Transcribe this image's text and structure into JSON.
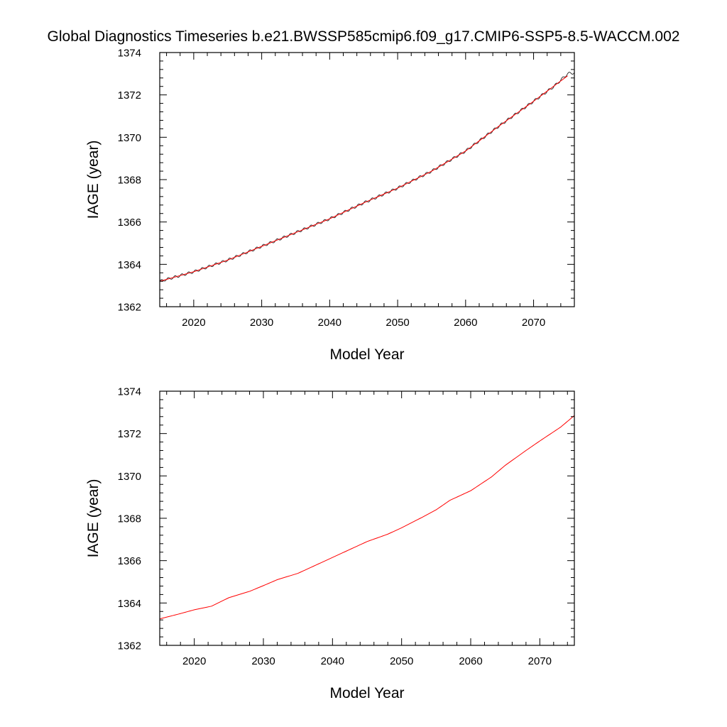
{
  "figure": {
    "title": "Global Diagnostics Timeseries b.e21.BWSSP585cmip6.f09_g17.CMIP6-SSP5-8.5-WACCM.002"
  },
  "colors": {
    "raw_series": "#222222",
    "smoothed_series": "#ff0000",
    "frame": "#000000"
  },
  "chart_data": [
    {
      "type": "line",
      "title": "Global Diagnostics Timeseries b.e21.BWSSP585cmip6.f09_g17.CMIP6-SSP5-8.5-WACCM.002",
      "xlabel": "Model Year",
      "ylabel": "IAGE (year)",
      "xlim": [
        2015,
        2076
      ],
      "ylim": [
        1362,
        1374
      ],
      "x_ticks": [
        2020,
        2030,
        2040,
        2050,
        2060,
        2070
      ],
      "x_tick_labels": [
        "2020",
        "2030",
        "2040",
        "2050",
        "2060",
        "2070"
      ],
      "y_ticks": [
        1362,
        1364,
        1366,
        1368,
        1370,
        1372,
        1374
      ],
      "y_tick_labels": [
        "1362",
        "1364",
        "1366",
        "1368",
        "1370",
        "1372",
        "1374"
      ],
      "grid": false,
      "legend": "none",
      "series": [
        {
          "style": "raw",
          "color": "#222222",
          "x": [
            2015,
            2020,
            2025,
            2030,
            2035,
            2040,
            2045,
            2050,
            2055,
            2060,
            2065,
            2070,
            2073,
            2075,
            2076
          ],
          "y": [
            1363.2,
            1363.65,
            1364.2,
            1364.85,
            1365.5,
            1366.15,
            1366.9,
            1367.6,
            1368.4,
            1369.35,
            1370.55,
            1371.7,
            1372.4,
            1373.0,
            1373.05
          ],
          "seasonal_amplitude": 0.06
        },
        {
          "style": "smoothed",
          "color": "#ff0000",
          "x": [
            2015,
            2020,
            2025,
            2030,
            2035,
            2040,
            2045,
            2050,
            2055,
            2060,
            2065,
            2070,
            2075
          ],
          "y": [
            1363.2,
            1363.65,
            1364.2,
            1364.85,
            1365.5,
            1366.15,
            1366.9,
            1367.6,
            1368.4,
            1369.35,
            1370.55,
            1371.7,
            1372.9
          ]
        }
      ]
    },
    {
      "type": "line",
      "xlabel": "Model Year",
      "ylabel": "IAGE (year)",
      "xlim": [
        2015,
        2075
      ],
      "ylim": [
        1362,
        1374
      ],
      "x_ticks": [
        2020,
        2030,
        2040,
        2050,
        2060,
        2070
      ],
      "x_tick_labels": [
        "2020",
        "2030",
        "2040",
        "2050",
        "2060",
        "2070"
      ],
      "y_ticks": [
        1362,
        1364,
        1366,
        1368,
        1370,
        1372,
        1374
      ],
      "y_tick_labels": [
        "1362",
        "1364",
        "1366",
        "1368",
        "1370",
        "1372",
        "1374"
      ],
      "grid": false,
      "legend": "none",
      "series": [
        {
          "style": "smoothed",
          "color": "#ff0000",
          "x": [
            2015,
            2018,
            2020,
            2022.5,
            2025,
            2028,
            2030,
            2032,
            2035,
            2038,
            2040,
            2042,
            2045,
            2048,
            2050,
            2053,
            2055,
            2057,
            2060,
            2063,
            2065,
            2068,
            2070,
            2073,
            2075
          ],
          "y": [
            1363.25,
            1363.5,
            1363.68,
            1363.85,
            1364.25,
            1364.55,
            1364.82,
            1365.1,
            1365.4,
            1365.85,
            1366.15,
            1366.45,
            1366.9,
            1367.25,
            1367.55,
            1368.05,
            1368.4,
            1368.85,
            1369.3,
            1369.95,
            1370.5,
            1371.2,
            1371.65,
            1372.3,
            1372.85
          ]
        }
      ]
    }
  ]
}
